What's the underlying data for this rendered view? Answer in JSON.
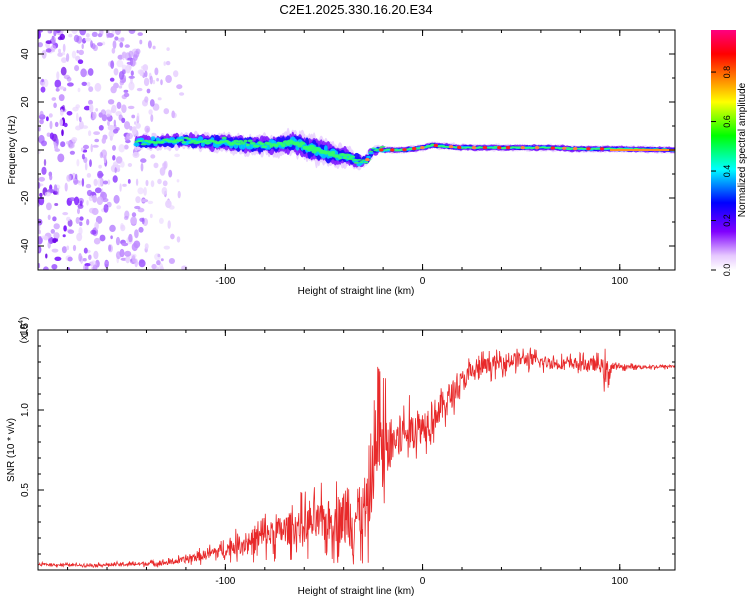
{
  "figure_title": "C2E1.2025.330.16.20.E34",
  "chart_data": [
    {
      "type": "heatmap",
      "id": "spectrogram",
      "xlabel": "Height of straight line (km)",
      "ylabel": "Frequency (Hz)",
      "xlim": [
        -195,
        128
      ],
      "ylim": [
        -50,
        50
      ],
      "xticks": [
        -100,
        0,
        100
      ],
      "xtick_labels": [
        "-100",
        "0",
        "100"
      ],
      "yticks": [
        -40,
        -20,
        0,
        20,
        40
      ],
      "ytick_labels": [
        "-40",
        "-20",
        "0",
        "20",
        "40"
      ],
      "colorbar": {
        "label": "Normalized spectral amplitude",
        "range": [
          0,
          0.97
        ],
        "ticks": [
          0,
          0.2,
          0.4,
          0.6,
          0.8
        ],
        "tick_labels": [
          "0.0",
          "0.2",
          "0.4",
          "0.6",
          "0.8"
        ],
        "colors": [
          "#ffffff",
          "#e6c8ff",
          "#8000ff",
          "#0000ff",
          "#00ffff",
          "#00ff00",
          "#ffff00",
          "#ff8000",
          "#ff0000",
          "#ff0080"
        ]
      },
      "scatter_region": {
        "x": [
          -195,
          -118
        ],
        "freq": [
          -50,
          50
        ]
      },
      "ridge": {
        "x": [
          -145,
          -120,
          -100,
          -80,
          -65,
          -55,
          -45,
          -38,
          -32,
          -28,
          -25,
          -20,
          -10,
          0,
          5,
          20,
          40,
          60,
          80,
          95,
          128
        ],
        "freq": [
          3,
          4,
          3,
          2,
          3,
          0,
          -2,
          -3,
          -5,
          -4,
          0,
          0,
          0,
          1,
          2,
          1,
          1,
          1,
          0.5,
          0.5,
          0
        ],
        "width_hz": [
          6,
          6,
          8,
          8,
          10,
          12,
          10,
          8,
          5,
          4,
          3,
          3,
          3,
          3,
          3,
          3,
          3,
          3,
          3,
          3,
          3
        ]
      }
    },
    {
      "type": "line",
      "id": "snr",
      "xlabel": "Height of straight line (km)",
      "ylabel": "SNR (10 * v/v)",
      "multiplier_label": "(x10",
      "multiplier_exponent": "4",
      "multiplier_close": ")",
      "xlim": [
        -195,
        128
      ],
      "ylim": [
        0,
        15000
      ],
      "xticks": [
        -100,
        0,
        100
      ],
      "xtick_labels": [
        "-100",
        "0",
        "100"
      ],
      "yticks": [
        5000,
        10000,
        15000
      ],
      "ytick_labels": [
        "0.5",
        "1.0",
        "1.5"
      ],
      "color": "#e8292a",
      "series": [
        {
          "name": "SNR",
          "x": [
            -195,
            -170,
            -150,
            -130,
            -120,
            -110,
            -100,
            -90,
            -80,
            -70,
            -60,
            -50,
            -45,
            -40,
            -35,
            -30,
            -27,
            -25,
            -23,
            -20,
            -15,
            -10,
            -5,
            0,
            5,
            10,
            15,
            20,
            25,
            30,
            35,
            40,
            45,
            50,
            55,
            60,
            70,
            80,
            90,
            93,
            95,
            97,
            100,
            110,
            120,
            128
          ],
          "y": [
            350,
            300,
            350,
            450,
            650,
            950,
            1300,
            1700,
            2100,
            2500,
            2800,
            3000,
            3100,
            3200,
            3300,
            3500,
            4000,
            6500,
            7000,
            7500,
            8000,
            8500,
            8700,
            9000,
            9600,
            10200,
            11000,
            11800,
            12300,
            12700,
            12800,
            13000,
            13100,
            13200,
            13100,
            13000,
            12900,
            12900,
            12800,
            12300,
            12600,
            12700,
            12700,
            12700,
            12700,
            12750
          ],
          "noise": [
            100,
            100,
            150,
            200,
            300,
            450,
            600,
            900,
            1200,
            1400,
            1600,
            1800,
            2000,
            2200,
            2400,
            2600,
            2800,
            3000,
            3200,
            2500,
            2200,
            1800,
            1600,
            1500,
            1400,
            1300,
            1200,
            1000,
            900,
            800,
            700,
            700,
            700,
            600,
            600,
            600,
            500,
            500,
            600,
            1200,
            1000,
            300,
            200,
            150,
            150,
            150
          ]
        }
      ]
    }
  ]
}
